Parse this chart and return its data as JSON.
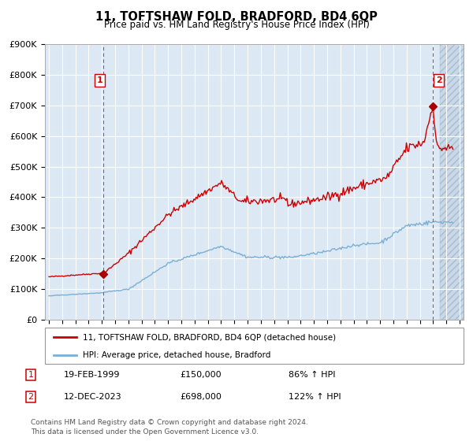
{
  "title": "11, TOFTSHAW FOLD, BRADFORD, BD4 6QP",
  "subtitle": "Price paid vs. HM Land Registry's House Price Index (HPI)",
  "red_line_color": "#cc0000",
  "blue_line_color": "#7bafd4",
  "plot_bg_color": "#dce9f5",
  "grid_color": "#ffffff",
  "transaction1_x": 1999.13,
  "transaction1_y": 150000,
  "transaction2_x": 2023.96,
  "transaction2_y": 698000,
  "xmin": 1994.7,
  "xmax": 2026.3,
  "ymin": 0,
  "ymax": 900000,
  "yticks": [
    0,
    100000,
    200000,
    300000,
    400000,
    500000,
    600000,
    700000,
    800000,
    900000
  ],
  "ytick_labels": [
    "£0",
    "£100K",
    "£200K",
    "£300K",
    "£400K",
    "£500K",
    "£600K",
    "£700K",
    "£800K",
    "£900K"
  ],
  "hatch_start": 2024.5,
  "legend_line1": "11, TOFTSHAW FOLD, BRADFORD, BD4 6QP (detached house)",
  "legend_line2": "HPI: Average price, detached house, Bradford",
  "table_row1_num": "1",
  "table_row1_date": "19-FEB-1999",
  "table_row1_price": "£150,000",
  "table_row1_hpi": "86% ↑ HPI",
  "table_row2_num": "2",
  "table_row2_date": "12-DEC-2023",
  "table_row2_price": "£698,000",
  "table_row2_hpi": "122% ↑ HPI",
  "footer": "Contains HM Land Registry data © Crown copyright and database right 2024.\nThis data is licensed under the Open Government Licence v3.0."
}
